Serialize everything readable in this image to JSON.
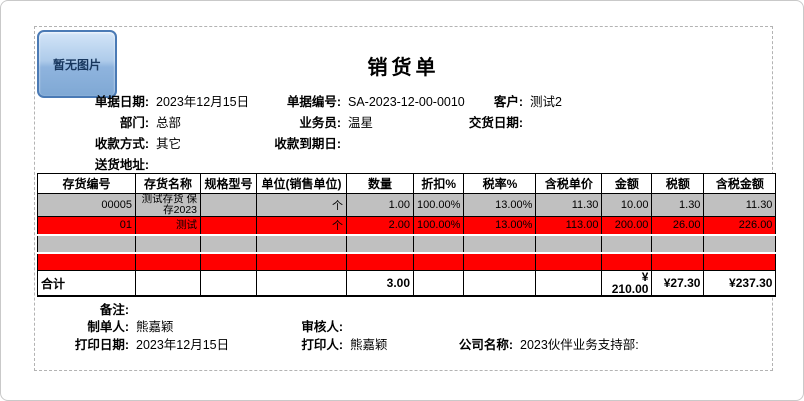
{
  "page": {
    "title": "销货单",
    "image_placeholder_label": "暂无图片"
  },
  "header_fields": {
    "doc_date": {
      "label": "单据日期:",
      "value": "2023年12月15日"
    },
    "doc_no": {
      "label": "单据编号:",
      "value": "SA-2023-12-00-0010"
    },
    "customer": {
      "label": "客户:",
      "value": "测试2"
    },
    "department": {
      "label": "部门:",
      "value": "总部"
    },
    "salesperson": {
      "label": "业务员:",
      "value": "温星"
    },
    "delivery_date": {
      "label": "交货日期:",
      "value": ""
    },
    "payment_method": {
      "label": "收款方式:",
      "value": "其它"
    },
    "payment_due": {
      "label": "收款到期日:",
      "value": ""
    },
    "delivery_address": {
      "label": "送货地址:",
      "value": ""
    }
  },
  "table": {
    "headers": [
      "存货编号",
      "存货名称",
      "规格型号",
      "单位(销售单位)",
      "数量",
      "折扣%",
      "税率%",
      "含税单价",
      "金额",
      "税额",
      "含税金额"
    ],
    "rows": [
      {
        "color": "gray",
        "cells": [
          "00005",
          "测试存货 保存2023",
          "",
          "个",
          "1.00",
          "100.00%",
          "13.00%",
          "11.30",
          "10.00",
          "1.30",
          "11.30"
        ]
      },
      {
        "color": "red",
        "cells": [
          "01",
          "测试",
          "",
          "个",
          "2.00",
          "100.00%",
          "13.00%",
          "113.00",
          "200.00",
          "26.00",
          "226.00"
        ]
      },
      {
        "color": "gray",
        "cells": [
          "",
          "",
          "",
          "",
          "",
          "",
          "",
          "",
          "",
          "",
          ""
        ]
      },
      {
        "color": "red",
        "cells": [
          "",
          "",
          "",
          "",
          "",
          "",
          "",
          "",
          "",
          "",
          ""
        ]
      },
      {
        "color": "total",
        "cells": [
          "合计",
          "",
          "",
          "",
          "3.00",
          "",
          "",
          "",
          "¥ 210.00",
          "¥27.30",
          "¥237.30"
        ]
      }
    ]
  },
  "footer_fields": {
    "remark": {
      "label": "备注:",
      "value": ""
    },
    "creator": {
      "label": "制单人:",
      "value": "熊嘉颖"
    },
    "reviewer": {
      "label": "审核人:",
      "value": ""
    },
    "print_date": {
      "label": "打印日期:",
      "value": "2023年12月15日"
    },
    "printer": {
      "label": "打印人:",
      "value": "熊嘉颖"
    },
    "company": {
      "label": "公司名称:",
      "value": "2023伙伴业务支持部:"
    }
  },
  "colors": {
    "gray_row": "#c0c0c0",
    "red_row": "#ff0000",
    "button_blue_border": "#4a7ab5",
    "button_blue_fill": "#aecbea",
    "table_border": "#000000",
    "dashed_border": "#b3b3b3"
  }
}
